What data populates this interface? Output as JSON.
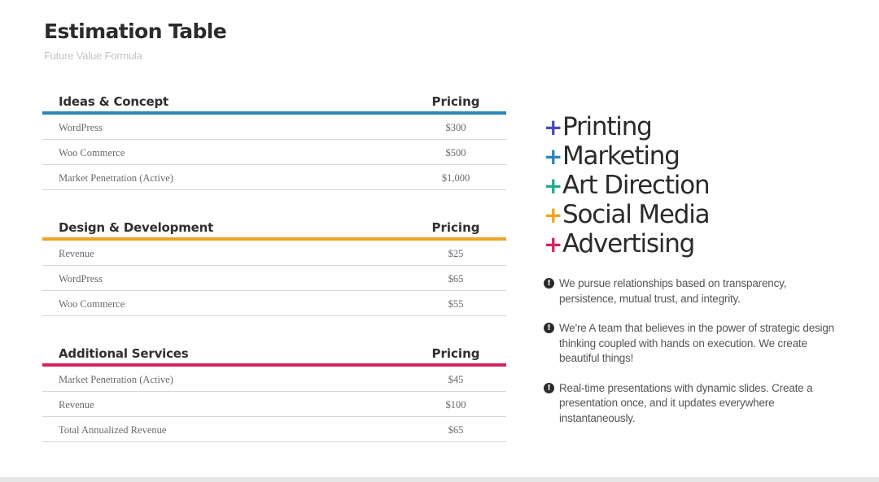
{
  "header": {
    "title": "Estimation Table",
    "subtitle": "Future Value Formula"
  },
  "sections": [
    {
      "name": "Ideas & Concept",
      "price_header": "Pricing",
      "color": "#2a86b7",
      "rows": [
        {
          "item": "WordPress",
          "price": "$300"
        },
        {
          "item": "Woo Commerce",
          "price": "$500"
        },
        {
          "item": "Market Penetration (Active)",
          "price": "$1,000"
        }
      ]
    },
    {
      "name": "Design & Development",
      "price_header": "Pricing",
      "color": "#f0a323",
      "rows": [
        {
          "item": "Revenue",
          "price": "$25"
        },
        {
          "item": "WordPress",
          "price": "$65"
        },
        {
          "item": "Woo Commerce",
          "price": "$55"
        }
      ]
    },
    {
      "name": "Additional Services",
      "price_header": "Pricing",
      "color": "#d6235e",
      "rows": [
        {
          "item": "Market Penetration (Active)",
          "price": "$45"
        },
        {
          "item": "Revenue",
          "price": "$100"
        },
        {
          "item": "Total Annualized Revenue",
          "price": "$65"
        }
      ]
    }
  ],
  "services": [
    {
      "symbol": "+",
      "label": "Printing",
      "color": "#4b4bb5"
    },
    {
      "symbol": "+",
      "label": "Marketing",
      "color": "#2a86b7"
    },
    {
      "symbol": "+",
      "label": "Art Direction",
      "color": "#23a98b"
    },
    {
      "symbol": "+",
      "label": "Social Media",
      "color": "#f0a323"
    },
    {
      "symbol": "+",
      "label": "Advertising",
      "color": "#d6235e"
    }
  ],
  "notes": [
    {
      "icon": "exclamation-icon",
      "text": "We pursue relationships based on transparency, persistence, mutual trust, and integrity."
    },
    {
      "icon": "exclamation-icon",
      "text": "We're A team that believes in the power of strategic design thinking coupled with hands on execution. We create beautiful things!"
    },
    {
      "icon": "exclamation-icon",
      "text": "Real-time presentations with dynamic slides. Create a presentation once, and it updates everywhere instantaneously."
    }
  ]
}
